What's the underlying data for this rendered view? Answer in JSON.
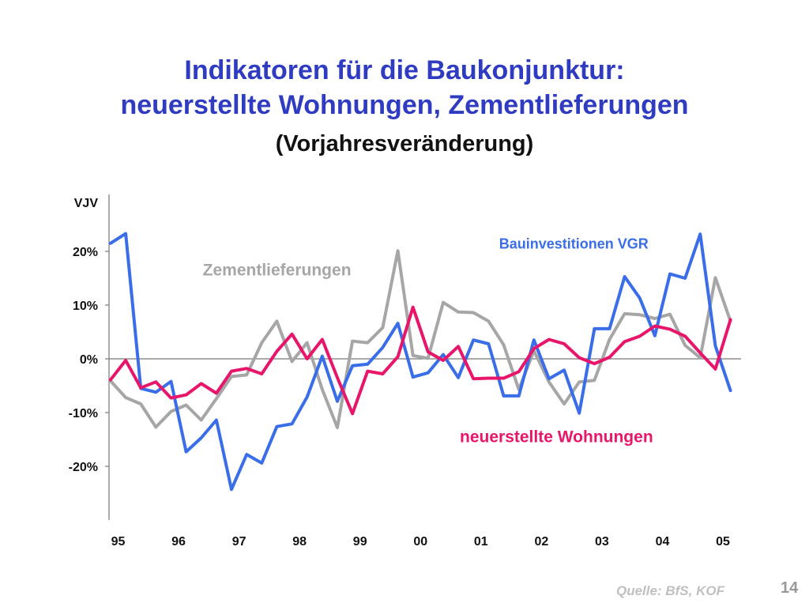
{
  "title_line1": "Indikatoren für die Baukonjunktur:",
  "title_line2": "neuerstellte Wohnungen, Zementlieferungen",
  "title_line3": "(Vorjahresveränderung)",
  "source": "Quelle: BfS, KOF",
  "page_number": "14",
  "chart_data": {
    "type": "line",
    "ylabel": "VJV",
    "ylim": [
      -30,
      30
    ],
    "yticks": [
      20,
      10,
      0,
      -10,
      -20
    ],
    "ytick_labels": [
      "20%",
      "10%",
      "0%",
      "-10%",
      "-20%"
    ],
    "x_tick_labels": [
      "95",
      "96",
      "97",
      "98",
      "99",
      "00",
      "01",
      "02",
      "03",
      "04",
      "05"
    ],
    "x_tick_positions": [
      1995,
      1996,
      1997,
      1998,
      1999,
      2000,
      2001,
      2002,
      2003,
      2004,
      2005
    ],
    "xlim": [
      1994.85,
      2005.3
    ],
    "x": [
      1994.875,
      1995.125,
      1995.375,
      1995.625,
      1995.875,
      1996.125,
      1996.375,
      1996.625,
      1996.875,
      1997.125,
      1997.375,
      1997.625,
      1997.875,
      1998.125,
      1998.375,
      1998.625,
      1998.875,
      1999.125,
      1999.375,
      1999.625,
      1999.875,
      2000.125,
      2000.375,
      2000.625,
      2000.875,
      2001.125,
      2001.375,
      2001.625,
      2001.875,
      2002.125,
      2002.375,
      2002.625,
      2002.875,
      2003.125,
      2003.375,
      2003.625,
      2003.875,
      2004.125,
      2004.375,
      2004.625,
      2004.875,
      2005.125
    ],
    "series": [
      {
        "name": "Bauinvestitionen VGR",
        "color": "#3a6ee8",
        "values": [
          21.5,
          23.3,
          -5.5,
          -6.2,
          -4.2,
          -17.3,
          -14.7,
          -11.4,
          -24.3,
          -17.8,
          -19.4,
          -12.6,
          -12.1,
          -7.1,
          0.5,
          -7.9,
          -1.3,
          -1.0,
          2.1,
          6.6,
          -3.4,
          -2.6,
          0.8,
          -3.5,
          3.5,
          2.8,
          -6.9,
          -6.9,
          3.5,
          -3.7,
          -2.1,
          -10.1,
          5.6,
          5.6,
          15.3,
          11.3,
          4.3,
          15.8,
          15.0,
          23.2,
          2.4,
          -5.9
        ]
      },
      {
        "name": "Zementlieferungen",
        "color": "#a6a6a6",
        "values": [
          -4.1,
          -7.2,
          -8.4,
          -12.7,
          -9.8,
          -8.6,
          -11.4,
          -7.4,
          -3.3,
          -3.0,
          3.0,
          7.0,
          -0.5,
          3.0,
          -5.7,
          -12.8,
          3.3,
          3.0,
          5.8,
          20.1,
          0.6,
          0.1,
          10.5,
          8.7,
          8.6,
          7.0,
          2.6,
          -5.7,
          1.5,
          -4.3,
          -8.4,
          -4.3,
          -4.0,
          3.6,
          8.4,
          8.2,
          7.5,
          8.3,
          2.5,
          0.2,
          15.1,
          7.0
        ]
      },
      {
        "name": "neuerstellte Wohnungen",
        "color": "#e8166a",
        "values": [
          -3.9,
          -0.3,
          -5.4,
          -4.3,
          -7.3,
          -6.7,
          -4.6,
          -6.4,
          -2.3,
          -1.8,
          -2.8,
          1.4,
          4.6,
          0.0,
          3.6,
          -3.5,
          -10.2,
          -2.3,
          -2.8,
          0.4,
          9.6,
          1.3,
          -0.3,
          2.3,
          -3.7,
          -3.6,
          -3.6,
          -2.4,
          1.9,
          3.6,
          2.8,
          0.2,
          -0.9,
          0.3,
          3.2,
          4.2,
          6.1,
          5.5,
          4.2,
          1.1,
          -1.9,
          7.3
        ]
      }
    ],
    "annotations": [
      {
        "text": "Zementlieferungen",
        "color": "#a6a6a6",
        "x": 1996.4,
        "y": 15.5
      },
      {
        "text": "Bauinvestitionen VGR",
        "color": "#3a6ee8",
        "x": 2001.3,
        "y": 20.5
      },
      {
        "text": "neuerstellte Wohnungen",
        "color": "#e8166a",
        "x": 2000.65,
        "y": -15.5
      }
    ]
  }
}
